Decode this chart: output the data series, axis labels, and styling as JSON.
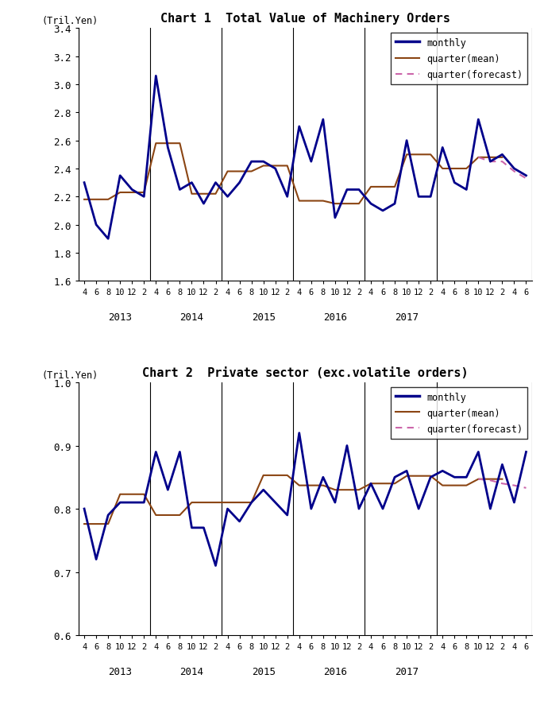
{
  "chart1_title": "Chart 1  Total Value of Machinery Orders",
  "chart2_title": "Chart 2  Private sector (exc.volatile orders)",
  "ylabel": "(Tril.Yen)",
  "chart1_ylim": [
    1.6,
    3.4
  ],
  "chart2_ylim": [
    0.6,
    1.0
  ],
  "chart1_yticks": [
    1.6,
    1.8,
    2.0,
    2.2,
    2.4,
    2.6,
    2.8,
    3.0,
    3.2,
    3.4
  ],
  "chart2_yticks": [
    0.6,
    0.7,
    0.8,
    0.9,
    1.0
  ],
  "monthly_color": "#00008B",
  "quarter_mean_color": "#8B4513",
  "quarter_forecast_color": "#CC66AA",
  "monthly_lw": 2.0,
  "quarter_lw": 1.5,
  "legend_monthly": "monthly",
  "legend_mean": "quarter(mean)",
  "legend_forecast": "quarter(forecast)",
  "x_tick_labels": [
    "4",
    "6",
    "8",
    "10",
    "12",
    "2",
    "4",
    "6",
    "8",
    "10",
    "12",
    "2",
    "4",
    "6",
    "8",
    "10",
    "12",
    "2",
    "4",
    "6",
    "8",
    "10",
    "12",
    "2",
    "4",
    "6",
    "8",
    "10",
    "12",
    "2",
    "4",
    "6",
    "8",
    "10",
    "12",
    "2",
    "2",
    ""
  ],
  "x_year_labels": [
    "2013",
    "2014",
    "2015",
    "2016",
    "2017"
  ],
  "year_boundaries": [
    0,
    6,
    12,
    18,
    24,
    30
  ],
  "year_centers": [
    3,
    9,
    15,
    21,
    27,
    33
  ],
  "chart1_monthly": [
    2.3,
    2.0,
    1.9,
    2.35,
    2.25,
    2.2,
    3.06,
    2.55,
    2.25,
    2.3,
    2.15,
    2.3,
    2.2,
    2.3,
    2.45,
    2.45,
    2.4,
    2.2,
    2.7,
    2.45,
    2.75,
    2.05,
    2.25,
    2.25,
    2.15,
    2.1,
    2.15,
    2.6,
    2.2,
    2.2,
    2.55,
    2.3,
    2.25,
    2.75,
    2.45,
    2.5,
    2.4,
    2.35
  ],
  "chart1_quarter_mean_x": [
    0,
    1,
    2,
    3,
    4,
    5,
    6,
    7,
    8,
    9,
    10,
    11,
    12,
    13,
    14,
    15,
    16,
    17,
    18,
    19,
    20,
    21,
    22,
    23,
    24,
    25,
    26,
    27,
    28,
    29,
    30,
    31,
    32,
    33,
    34,
    35
  ],
  "chart1_quarter_mean": [
    2.18,
    2.18,
    2.18,
    2.23,
    2.23,
    2.23,
    2.58,
    2.58,
    2.58,
    2.22,
    2.22,
    2.22,
    2.38,
    2.38,
    2.38,
    2.42,
    2.42,
    2.42,
    2.17,
    2.17,
    2.17,
    2.15,
    2.15,
    2.15,
    2.27,
    2.27,
    2.27,
    2.5,
    2.5,
    2.5,
    2.4,
    2.4,
    2.4,
    2.48,
    2.48,
    2.48
  ],
  "chart1_quarter_forecast_x": [
    33,
    34,
    35,
    36,
    37
  ],
  "chart1_quarter_forecast": [
    2.48,
    2.45,
    2.45,
    2.38,
    2.33
  ],
  "chart2_monthly": [
    0.8,
    0.72,
    0.79,
    0.81,
    0.81,
    0.81,
    0.89,
    0.83,
    0.89,
    0.77,
    0.77,
    0.71,
    0.8,
    0.78,
    0.81,
    0.83,
    0.81,
    0.79,
    0.92,
    0.8,
    0.85,
    0.81,
    0.9,
    0.8,
    0.84,
    0.8,
    0.85,
    0.86,
    0.8,
    0.85,
    0.86,
    0.85,
    0.85,
    0.89,
    0.8,
    0.87,
    0.81,
    0.89
  ],
  "chart2_quarter_mean_x": [
    0,
    1,
    2,
    3,
    4,
    5,
    6,
    7,
    8,
    9,
    10,
    11,
    12,
    13,
    14,
    15,
    16,
    17,
    18,
    19,
    20,
    21,
    22,
    23,
    24,
    25,
    26,
    27,
    28,
    29,
    30,
    31,
    32,
    33,
    34,
    35
  ],
  "chart2_quarter_mean": [
    0.776,
    0.776,
    0.776,
    0.823,
    0.823,
    0.823,
    0.79,
    0.79,
    0.79,
    0.81,
    0.81,
    0.81,
    0.81,
    0.81,
    0.81,
    0.853,
    0.853,
    0.853,
    0.837,
    0.837,
    0.837,
    0.83,
    0.83,
    0.83,
    0.84,
    0.84,
    0.84,
    0.852,
    0.852,
    0.852,
    0.837,
    0.837,
    0.837,
    0.847,
    0.847,
    0.847
  ],
  "chart2_quarter_forecast_x": [
    33,
    34,
    35,
    36,
    37
  ],
  "chart2_quarter_forecast": [
    0.847,
    0.845,
    0.84,
    0.837,
    0.833
  ],
  "background_color": "#FFFFFF"
}
